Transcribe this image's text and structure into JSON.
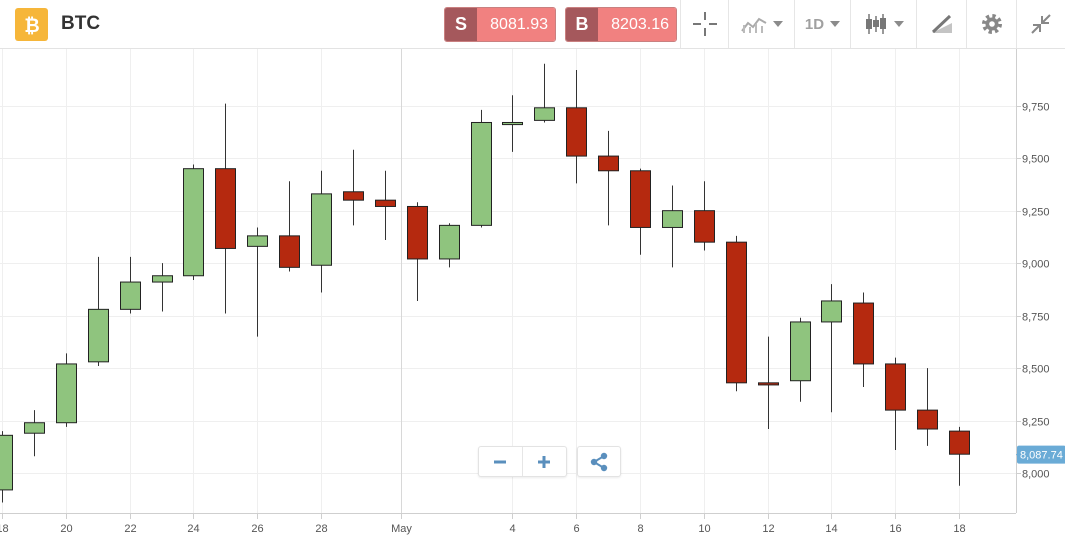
{
  "header": {
    "symbol": "BTC",
    "logo_icon": "bitcoin-icon",
    "sell": {
      "label": "S",
      "price": "8081.93"
    },
    "buy": {
      "label": "B",
      "price": "8203.16"
    },
    "timeframe": "1D",
    "tools": [
      "crosshair-icon",
      "indicators-icon",
      "timeframe-dropdown",
      "chart-type-icon",
      "draw-icon",
      "settings-icon",
      "collapse-icon"
    ]
  },
  "colors": {
    "up": "#8fc47e",
    "down": "#b5290f",
    "price_tag": "#6aabd6"
  },
  "controls": {
    "zoom_out": "zoom-out-icon",
    "zoom_in": "zoom-in-icon",
    "share": "share-icon"
  },
  "chart_data": {
    "type": "candlestick",
    "x_tick_labels": [
      "18",
      "20",
      "22",
      "24",
      "26",
      "28",
      "May",
      "4",
      "6",
      "8",
      "10",
      "12",
      "14",
      "16",
      "18"
    ],
    "y_tick_labels": [
      "8,000",
      "8,250",
      "8,500",
      "8,750",
      "9,000",
      "9,250",
      "9,500",
      "9,750"
    ],
    "ylim": [
      7810,
      10020
    ],
    "grid": true,
    "last_price": "8,087.74",
    "candles": [
      {
        "o": 7920,
        "h": 8200,
        "l": 7860,
        "c": 8180
      },
      {
        "o": 8190,
        "h": 8300,
        "l": 8080,
        "c": 8240
      },
      {
        "o": 8240,
        "h": 8570,
        "l": 8220,
        "c": 8520
      },
      {
        "o": 8530,
        "h": 9030,
        "l": 8510,
        "c": 8780
      },
      {
        "o": 8780,
        "h": 9030,
        "l": 8760,
        "c": 8910
      },
      {
        "o": 8910,
        "h": 9000,
        "l": 8770,
        "c": 8940
      },
      {
        "o": 8940,
        "h": 9470,
        "l": 8920,
        "c": 9450
      },
      {
        "o": 9450,
        "h": 9760,
        "l": 8760,
        "c": 9070
      },
      {
        "o": 9080,
        "h": 9170,
        "l": 8650,
        "c": 9130
      },
      {
        "o": 9130,
        "h": 9390,
        "l": 8960,
        "c": 8980
      },
      {
        "o": 8990,
        "h": 9440,
        "l": 8860,
        "c": 9330
      },
      {
        "o": 9340,
        "h": 9540,
        "l": 9180,
        "c": 9300
      },
      {
        "o": 9300,
        "h": 9440,
        "l": 9110,
        "c": 9270
      },
      {
        "o": 9270,
        "h": 9290,
        "l": 8820,
        "c": 9020
      },
      {
        "o": 9020,
        "h": 9190,
        "l": 8980,
        "c": 9180
      },
      {
        "o": 9180,
        "h": 9730,
        "l": 9170,
        "c": 9670
      },
      {
        "o": 9660,
        "h": 9800,
        "l": 9530,
        "c": 9670
      },
      {
        "o": 9680,
        "h": 9950,
        "l": 9670,
        "c": 9740
      },
      {
        "o": 9740,
        "h": 9920,
        "l": 9380,
        "c": 9510
      },
      {
        "o": 9510,
        "h": 9630,
        "l": 9180,
        "c": 9440
      },
      {
        "o": 9440,
        "h": 9450,
        "l": 9040,
        "c": 9170
      },
      {
        "o": 9170,
        "h": 9370,
        "l": 8980,
        "c": 9250
      },
      {
        "o": 9250,
        "h": 9390,
        "l": 9060,
        "c": 9100
      },
      {
        "o": 9100,
        "h": 9130,
        "l": 8390,
        "c": 8430
      },
      {
        "o": 8430,
        "h": 8650,
        "l": 8210,
        "c": 8420
      },
      {
        "o": 8440,
        "h": 8740,
        "l": 8340,
        "c": 8720
      },
      {
        "o": 8720,
        "h": 8900,
        "l": 8290,
        "c": 8820
      },
      {
        "o": 8810,
        "h": 8860,
        "l": 8410,
        "c": 8520
      },
      {
        "o": 8520,
        "h": 8550,
        "l": 8110,
        "c": 8300
      },
      {
        "o": 8300,
        "h": 8500,
        "l": 8130,
        "c": 8210
      },
      {
        "o": 8200,
        "h": 8220,
        "l": 7940,
        "c": 8090
      }
    ]
  }
}
